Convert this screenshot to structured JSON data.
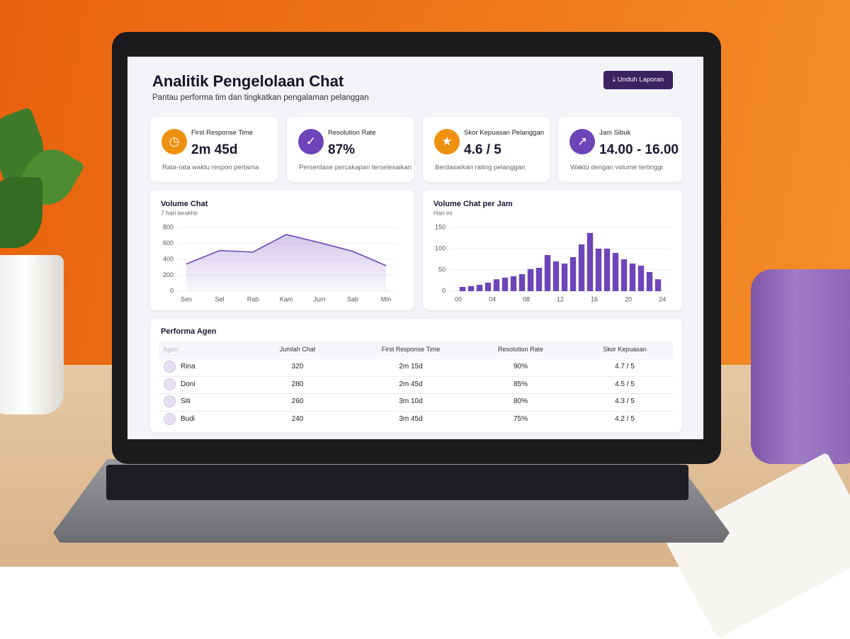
{
  "header": {
    "title": "Analitik Pengelolaan Chat",
    "subtitle": "Pantau performa tim dan tingkatkan pengalaman pelanggan",
    "button": "Unduh Laporan"
  },
  "kpis": [
    {
      "title": "First Response Time",
      "value": "2m 45d",
      "caption": "Rata-rata waktu respon pertama"
    },
    {
      "title": "Resolution Rate",
      "value": "87%",
      "caption": "Persentase percakapan terselesaikan"
    },
    {
      "title": "Skor Kepuasan Pelanggan",
      "value": "4.6 / 5",
      "caption": "Berdasarkan rating pelanggan"
    },
    {
      "title": "Jam Sibuk",
      "value": "14.00 - 16.00",
      "caption": "Waktu dengan volume tertinggi"
    }
  ],
  "chart_data": [
    {
      "type": "line",
      "title": "Volume Chat",
      "subtitle": "7 hari terakhir",
      "categories": [
        "Sen",
        "Sel",
        "Rab",
        "Kam",
        "Jum",
        "Sab",
        "Min"
      ],
      "values": [
        340,
        510,
        490,
        710,
        610,
        500,
        320
      ],
      "color": "#6d45b8",
      "ylim": [
        0,
        800
      ],
      "yticks": [
        0,
        200,
        400,
        600,
        800
      ],
      "grid": true
    },
    {
      "type": "bar",
      "title": "Volume Chat per Jam",
      "subtitle": "Hari ini",
      "x": [
        0,
        1,
        2,
        3,
        4,
        5,
        6,
        7,
        8,
        9,
        10,
        11,
        12,
        13,
        14,
        15,
        16,
        17,
        18,
        19,
        20,
        21,
        22,
        23
      ],
      "values": [
        10,
        12,
        15,
        20,
        28,
        32,
        35,
        40,
        52,
        55,
        85,
        70,
        65,
        80,
        110,
        137,
        100,
        100,
        90,
        75,
        65,
        60,
        45,
        28
      ],
      "color": "#6d45b8",
      "xlim": [
        0,
        24
      ],
      "xticks": [
        {
          "value": 0,
          "label": "00"
        },
        {
          "value": 4,
          "label": "04"
        },
        {
          "value": 8,
          "label": "08"
        },
        12,
        16,
        20,
        24
      ],
      "ylim": [
        0,
        150
      ],
      "yticks": [
        0,
        50,
        100,
        150
      ],
      "grid": true
    }
  ],
  "table": {
    "title": "Performa Agen",
    "columns": [
      "Agen",
      "Jumlah Chat",
      "First Response Time",
      "Resolution Rate",
      "Skor Kepuasan"
    ],
    "rows": [
      [
        "Rina",
        "320",
        "2m 15d",
        "90%",
        "4.7 / 5"
      ],
      [
        "Doni",
        "280",
        "2m 45d",
        "85%",
        "4.5 / 5"
      ],
      [
        "Siti",
        "260",
        "3m 10d",
        "80%",
        "4.3 / 5"
      ],
      [
        "Budi",
        "240",
        "3m 45d",
        "75%",
        "4.2 / 5"
      ]
    ]
  }
}
